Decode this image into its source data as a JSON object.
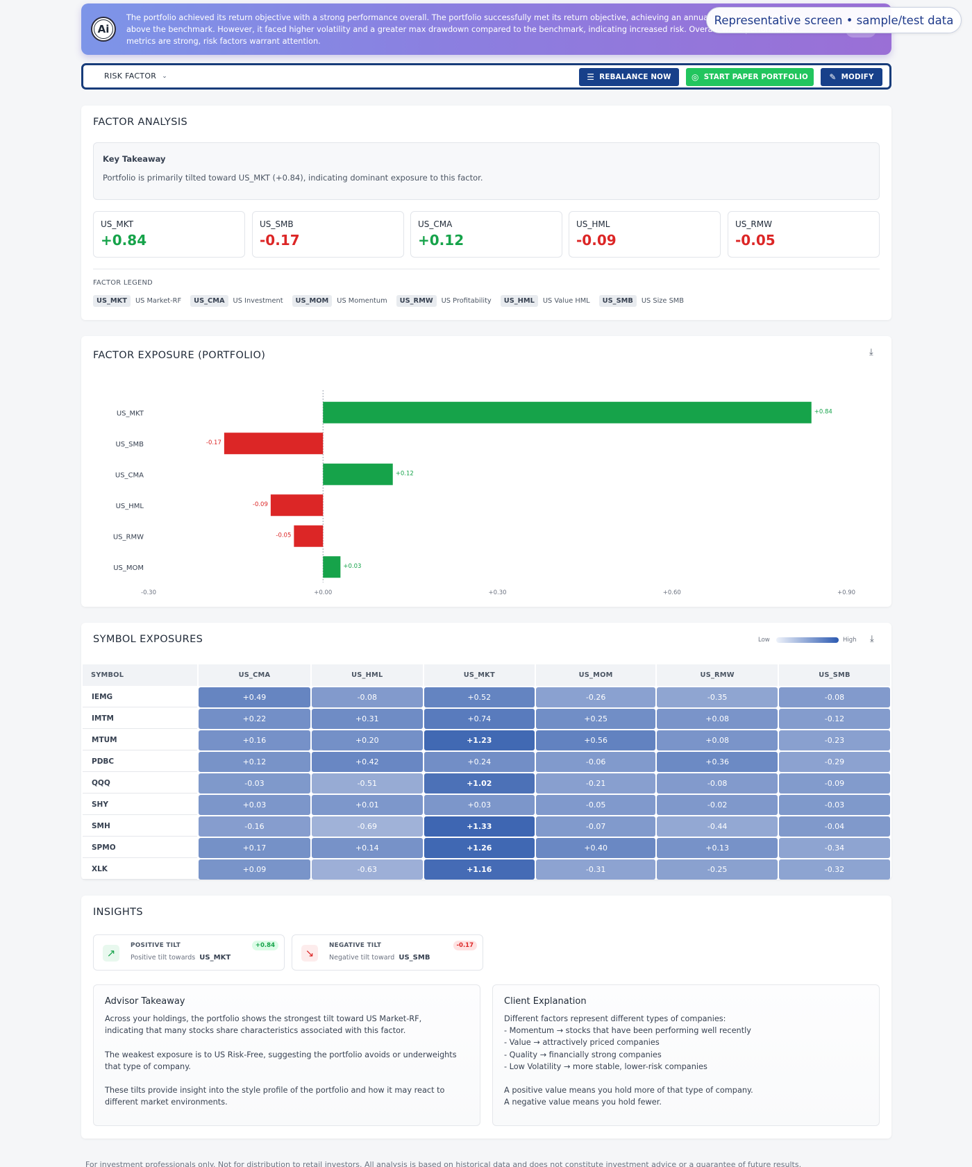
{
  "banner": {
    "text": "The portfolio achieved its return objective with a strong performance overall. The portfolio successfully met its return objective, achieving an annualized return significantly above the benchmark. However, it faced higher volatility and a greater max drawdown compared to the benchmark, indicating increased risk. Overall, while performance metrics are strong, risk factors warrant attention.",
    "ai_label": "Ai",
    "more": "•••",
    "rep_pill": "Representative screen • sample/test data"
  },
  "toolbar": {
    "select_label": "RISK FACTOR",
    "rebalance": "REBALANCE NOW",
    "paper": "START PAPER PORTFOLIO",
    "modify": "MODIFY"
  },
  "factor_analysis": {
    "title": "FACTOR ANALYSIS",
    "takeaway_title": "Key Takeaway",
    "takeaway_text": "Portfolio is primarily tilted toward US_MKT (+0.84), indicating dominant exposure to this factor.",
    "factors": [
      {
        "name": "US_MKT",
        "value": "+0.84",
        "sign": "pos"
      },
      {
        "name": "US_SMB",
        "value": "-0.17",
        "sign": "neg"
      },
      {
        "name": "US_CMA",
        "value": "+0.12",
        "sign": "pos"
      },
      {
        "name": "US_HML",
        "value": "-0.09",
        "sign": "neg"
      },
      {
        "name": "US_RMW",
        "value": "-0.05",
        "sign": "neg"
      }
    ],
    "legend_title": "FACTOR LEGEND",
    "legend": [
      {
        "code": "US_MKT",
        "desc": "US Market-RF"
      },
      {
        "code": "US_CMA",
        "desc": "US Investment"
      },
      {
        "code": "US_MOM",
        "desc": "US Momentum"
      },
      {
        "code": "US_RMW",
        "desc": "US Profitability"
      },
      {
        "code": "US_HML",
        "desc": "US Value HML"
      },
      {
        "code": "US_SMB",
        "desc": "US Size SMB"
      }
    ]
  },
  "exposure": {
    "title": "FACTOR EXPOSURE (PORTFOLIO)",
    "download_icon": "download-icon"
  },
  "chart_data": {
    "type": "bar",
    "orientation": "horizontal",
    "categories": [
      "US_MKT",
      "US_SMB",
      "US_CMA",
      "US_HML",
      "US_RMW",
      "US_MOM"
    ],
    "values": [
      0.84,
      -0.17,
      0.12,
      -0.09,
      -0.05,
      0.03
    ],
    "value_labels": [
      "+0.84",
      "-0.17",
      "+0.12",
      "-0.09",
      "-0.05",
      "+0.03"
    ],
    "xlim": [
      -0.3,
      0.9
    ],
    "xticks": [
      -0.3,
      0.0,
      0.3,
      0.6,
      0.9
    ],
    "xtick_labels": [
      "-0.30",
      "+0.00",
      "+0.30",
      "+0.60",
      "+0.90"
    ],
    "colors": {
      "positive": "#16a34a",
      "negative": "#dc2626"
    },
    "grid": false
  },
  "symbols": {
    "title": "SYMBOL EXPOSURES",
    "scale_low": "Low",
    "scale_high": "High",
    "symbol_header": "SYMBOL",
    "columns": [
      "US_CMA",
      "US_HML",
      "US_MKT",
      "US_MOM",
      "US_RMW",
      "US_SMB"
    ],
    "rows": [
      {
        "symbol": "IEMG",
        "values": [
          "+0.49",
          "-0.08",
          "+0.52",
          "-0.26",
          "-0.35",
          "-0.08"
        ]
      },
      {
        "symbol": "IMTM",
        "values": [
          "+0.22",
          "+0.31",
          "+0.74",
          "+0.25",
          "+0.08",
          "-0.12"
        ]
      },
      {
        "symbol": "MTUM",
        "values": [
          "+0.16",
          "+0.20",
          "+1.23",
          "+0.56",
          "+0.08",
          "-0.23"
        ]
      },
      {
        "symbol": "PDBC",
        "values": [
          "+0.12",
          "+0.42",
          "+0.24",
          "-0.06",
          "+0.36",
          "-0.29"
        ]
      },
      {
        "symbol": "QQQ",
        "values": [
          "-0.03",
          "-0.51",
          "+1.02",
          "-0.21",
          "-0.08",
          "-0.09"
        ]
      },
      {
        "symbol": "SHY",
        "values": [
          "+0.03",
          "+0.01",
          "+0.03",
          "-0.05",
          "-0.02",
          "-0.03"
        ]
      },
      {
        "symbol": "SMH",
        "values": [
          "-0.16",
          "-0.69",
          "+1.33",
          "-0.07",
          "-0.44",
          "-0.04"
        ]
      },
      {
        "symbol": "SPMO",
        "values": [
          "+0.17",
          "+0.14",
          "+1.26",
          "+0.40",
          "+0.13",
          "-0.34"
        ]
      },
      {
        "symbol": "XLK",
        "values": [
          "+0.09",
          "-0.63",
          "+1.16",
          "-0.31",
          "-0.25",
          "-0.32"
        ]
      }
    ]
  },
  "insights": {
    "title": "INSIGHTS",
    "positive": {
      "label": "POSITIVE TILT",
      "desc": "Positive tilt towards",
      "factor": "US_MKT",
      "badge": "+0.84"
    },
    "negative": {
      "label": "NEGATIVE TILT",
      "desc": "Negative tilt toward",
      "factor": "US_SMB",
      "badge": "-0.17"
    },
    "advisor_title": "Advisor Takeaway",
    "advisor_text": "Across your holdings, the portfolio shows the strongest tilt toward US Market-RF,\nindicating that many stocks share characteristics associated with this factor.\n\nThe weakest exposure is to US Risk-Free, suggesting the portfolio avoids or underweights\nthat type of company.\n\nThese tilts provide insight into the style profile of the portfolio and how it may react to\ndifferent market environments.",
    "client_title": "Client Explanation",
    "client_text": "Different factors represent different types of companies:\n- Momentum → stocks that have been performing well recently\n- Value → attractively priced companies\n- Quality → financially strong companies\n- Low Volatility → more stable, lower-risk companies\n\nA positive value means you hold more of that type of company.\nA negative value means you hold fewer."
  },
  "footer": "For investment professionals only. Not for distribution to retail investors. All analysis is based on historical data and does not constitute investment advice or a guarantee of future results."
}
